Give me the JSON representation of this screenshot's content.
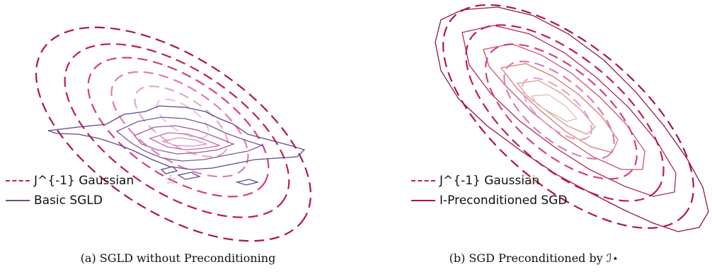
{
  "panels": [
    {
      "caption": "(a) SGLD without Preconditioning",
      "legend": [
        {
          "label": "J^{-1} Gaussian"
        },
        {
          "label": "Basic SGLD"
        }
      ]
    },
    {
      "caption": "(b) SGD Preconditioned by ℐ⋆",
      "legend": [
        {
          "label": "J^{-1} Gaussian"
        },
        {
          "label": "I-Preconditioned SGD"
        }
      ]
    }
  ],
  "star_symbol": "☆",
  "colors": {
    "gaussian_outer": "#b0124f",
    "gaussian_mid": "#d63c8a",
    "gaussian_inner": "#e8a4cd",
    "sgld": "#5b4a8c",
    "sgd_outer": "#8e1b3d",
    "sgd_inner": "#d99a8a"
  }
}
